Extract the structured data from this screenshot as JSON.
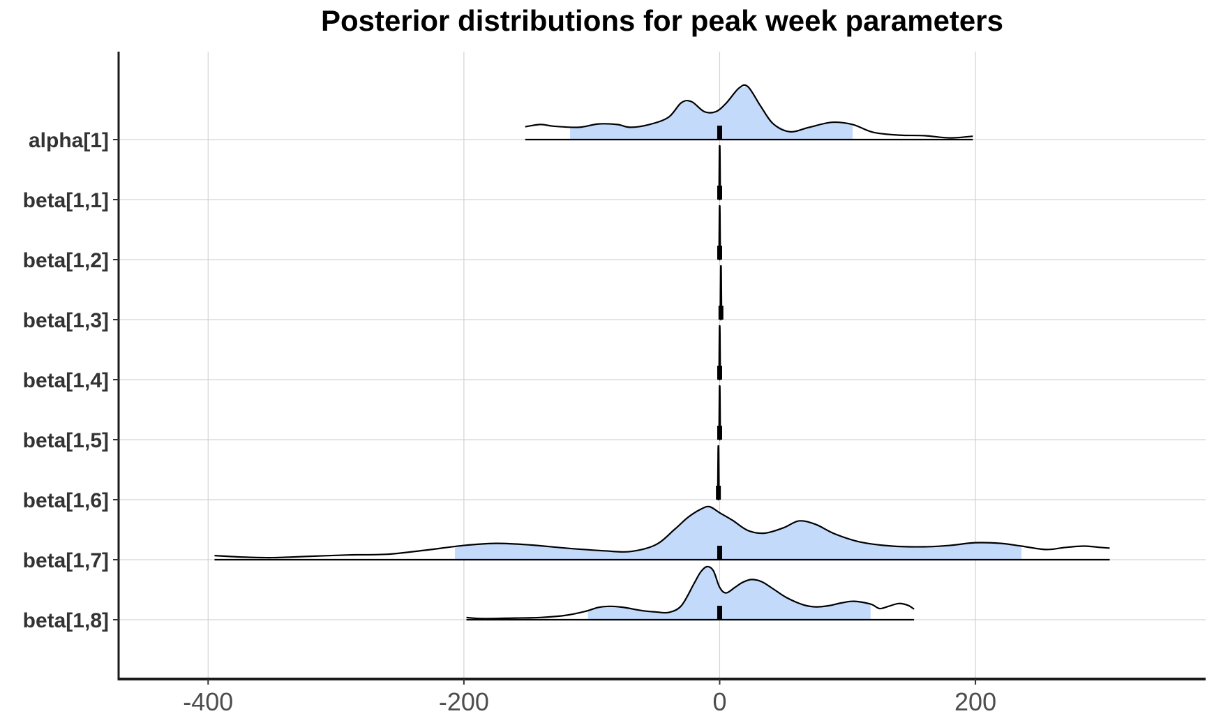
{
  "chart_data": {
    "type": "ridgeline",
    "title": "Posterior distributions for peak week parameters",
    "xlabel": "",
    "ylabel": "",
    "xlim": [
      -470,
      380
    ],
    "x_ticks": [
      -400,
      -200,
      0,
      200
    ],
    "x_tick_labels": [
      "-400",
      "-200",
      "0",
      "200"
    ],
    "grid": true,
    "fill_color": "#c3dafb",
    "line_color": "#000000",
    "parameters": [
      {
        "label": "alpha[1]",
        "median": 0,
        "interval_inner": [
          -117,
          104
        ],
        "range": [
          -152,
          198
        ],
        "density": [
          [
            -152,
            0.23
          ],
          [
            -140,
            0.27
          ],
          [
            -130,
            0.24
          ],
          [
            -110,
            0.22
          ],
          [
            -95,
            0.28
          ],
          [
            -80,
            0.27
          ],
          [
            -70,
            0.22
          ],
          [
            -55,
            0.27
          ],
          [
            -40,
            0.4
          ],
          [
            -30,
            0.66
          ],
          [
            -22,
            0.68
          ],
          [
            -12,
            0.5
          ],
          [
            -3,
            0.5
          ],
          [
            5,
            0.65
          ],
          [
            15,
            0.92
          ],
          [
            22,
            0.95
          ],
          [
            32,
            0.6
          ],
          [
            42,
            0.28
          ],
          [
            55,
            0.14
          ],
          [
            70,
            0.22
          ],
          [
            88,
            0.31
          ],
          [
            104,
            0.27
          ],
          [
            120,
            0.13
          ],
          [
            140,
            0.08
          ],
          [
            160,
            0.07
          ],
          [
            180,
            0.03
          ],
          [
            198,
            0.06
          ]
        ]
      },
      {
        "label": "beta[1,1]",
        "median": 0,
        "interval_inner": [
          -0.3,
          0.3
        ],
        "range": [
          -0.5,
          0.5
        ],
        "density": [
          [
            -0.5,
            0
          ],
          [
            -0.2,
            0.9
          ],
          [
            0,
            1.0
          ],
          [
            0.2,
            0.9
          ],
          [
            0.5,
            0
          ]
        ]
      },
      {
        "label": "beta[1,2]",
        "median": 0,
        "interval_inner": [
          -0.3,
          0.3
        ],
        "range": [
          -0.5,
          0.5
        ],
        "density": [
          [
            -0.5,
            0
          ],
          [
            -0.2,
            0.9
          ],
          [
            0,
            1.0
          ],
          [
            0.2,
            0.9
          ],
          [
            0.5,
            0
          ]
        ]
      },
      {
        "label": "beta[1,3]",
        "median": 1,
        "interval_inner": [
          0.7,
          1.3
        ],
        "range": [
          0.5,
          1.5
        ],
        "density": [
          [
            0.5,
            0
          ],
          [
            0.8,
            0.9
          ],
          [
            1,
            1.0
          ],
          [
            1.2,
            0.9
          ],
          [
            1.5,
            0
          ]
        ]
      },
      {
        "label": "beta[1,4]",
        "median": 0,
        "interval_inner": [
          -0.3,
          0.3
        ],
        "range": [
          -0.5,
          0.5
        ],
        "density": [
          [
            -0.5,
            0
          ],
          [
            -0.2,
            0.9
          ],
          [
            0,
            1.0
          ],
          [
            0.2,
            0.9
          ],
          [
            0.5,
            0
          ]
        ]
      },
      {
        "label": "beta[1,5]",
        "median": 0,
        "interval_inner": [
          -0.3,
          0.3
        ],
        "range": [
          -0.5,
          0.5
        ],
        "density": [
          [
            -0.5,
            0
          ],
          [
            -0.2,
            0.9
          ],
          [
            0,
            1.0
          ],
          [
            0.2,
            0.9
          ],
          [
            0.5,
            0
          ]
        ]
      },
      {
        "label": "beta[1,6]",
        "median": -1,
        "interval_inner": [
          -1.3,
          -0.7
        ],
        "range": [
          -1.5,
          -0.5
        ],
        "density": [
          [
            -1.5,
            0
          ],
          [
            -1.2,
            0.9
          ],
          [
            -1,
            1.0
          ],
          [
            -0.8,
            0.9
          ],
          [
            -0.5,
            0
          ]
        ]
      },
      {
        "label": "beta[1,7]",
        "median": 0,
        "interval_inner": [
          -207,
          236
        ],
        "range": [
          -395,
          305
        ],
        "density": [
          [
            -395,
            0.06
          ],
          [
            -375,
            0.04
          ],
          [
            -350,
            0.03
          ],
          [
            -320,
            0.05
          ],
          [
            -290,
            0.07
          ],
          [
            -260,
            0.08
          ],
          [
            -230,
            0.14
          ],
          [
            -200,
            0.21
          ],
          [
            -175,
            0.24
          ],
          [
            -150,
            0.22
          ],
          [
            -120,
            0.17
          ],
          [
            -90,
            0.13
          ],
          [
            -70,
            0.12
          ],
          [
            -50,
            0.22
          ],
          [
            -35,
            0.45
          ],
          [
            -25,
            0.62
          ],
          [
            -15,
            0.74
          ],
          [
            -8,
            0.78
          ],
          [
            0,
            0.69
          ],
          [
            10,
            0.58
          ],
          [
            22,
            0.43
          ],
          [
            35,
            0.39
          ],
          [
            50,
            0.47
          ],
          [
            62,
            0.57
          ],
          [
            75,
            0.52
          ],
          [
            90,
            0.38
          ],
          [
            110,
            0.26
          ],
          [
            135,
            0.2
          ],
          [
            160,
            0.19
          ],
          [
            180,
            0.21
          ],
          [
            200,
            0.25
          ],
          [
            220,
            0.24
          ],
          [
            236,
            0.2
          ],
          [
            255,
            0.15
          ],
          [
            270,
            0.18
          ],
          [
            285,
            0.2
          ],
          [
            298,
            0.18
          ],
          [
            305,
            0.17
          ]
        ]
      },
      {
        "label": "beta[1,8]",
        "median": 0,
        "interval_inner": [
          -103,
          118
        ],
        "range": [
          -198,
          152
        ],
        "density": [
          [
            -198,
            0.04
          ],
          [
            -185,
            0.02
          ],
          [
            -160,
            0.03
          ],
          [
            -140,
            0.04
          ],
          [
            -120,
            0.08
          ],
          [
            -105,
            0.15
          ],
          [
            -95,
            0.22
          ],
          [
            -85,
            0.24
          ],
          [
            -75,
            0.22
          ],
          [
            -60,
            0.16
          ],
          [
            -50,
            0.14
          ],
          [
            -40,
            0.13
          ],
          [
            -30,
            0.25
          ],
          [
            -20,
            0.65
          ],
          [
            -15,
            0.85
          ],
          [
            -10,
            0.95
          ],
          [
            -5,
            0.88
          ],
          [
            0,
            0.58
          ],
          [
            5,
            0.48
          ],
          [
            12,
            0.58
          ],
          [
            18,
            0.67
          ],
          [
            25,
            0.72
          ],
          [
            33,
            0.68
          ],
          [
            42,
            0.55
          ],
          [
            52,
            0.4
          ],
          [
            65,
            0.27
          ],
          [
            75,
            0.23
          ],
          [
            85,
            0.25
          ],
          [
            95,
            0.3
          ],
          [
            105,
            0.33
          ],
          [
            118,
            0.28
          ],
          [
            125,
            0.2
          ],
          [
            132,
            0.24
          ],
          [
            140,
            0.29
          ],
          [
            147,
            0.26
          ],
          [
            152,
            0.19
          ]
        ]
      }
    ]
  }
}
